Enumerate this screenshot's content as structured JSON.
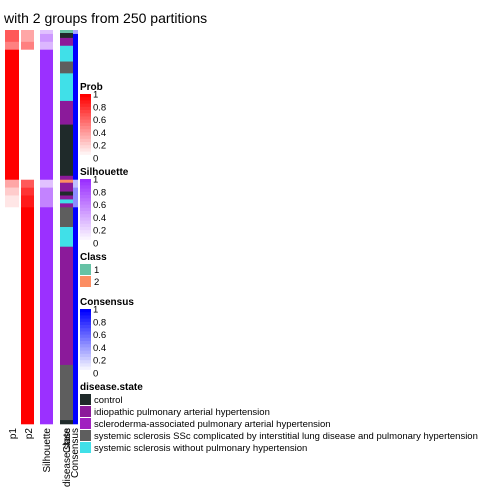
{
  "chart_data": {
    "type": "heatmap",
    "title": "with 2 groups from 250 partitions",
    "tracks": [
      {
        "label": "p1",
        "kind": "prob"
      },
      {
        "label": "p2",
        "kind": "prob"
      },
      {
        "label": "Silhouette",
        "kind": "silhouette"
      },
      {
        "label": "disease.state",
        "kind": "disease"
      },
      {
        "label": "Class",
        "kind": "class"
      },
      {
        "label": "Consensus",
        "kind": "consensus"
      }
    ],
    "rows": {
      "total": 100,
      "p1": [
        {
          "n": 3,
          "v": 0.65
        },
        {
          "n": 2,
          "v": 0.5
        },
        {
          "n": 33,
          "v": 1
        },
        {
          "n": 2,
          "v": 0.35
        },
        {
          "n": 2,
          "v": 0.2
        },
        {
          "n": 3,
          "v": 0.1
        },
        {
          "n": 55,
          "v": 0
        }
      ],
      "p2": [
        {
          "n": 3,
          "v": 0.35
        },
        {
          "n": 2,
          "v": 0.5
        },
        {
          "n": 33,
          "v": 0
        },
        {
          "n": 2,
          "v": 0.65
        },
        {
          "n": 2,
          "v": 0.8
        },
        {
          "n": 3,
          "v": 0.9
        },
        {
          "n": 55,
          "v": 1
        }
      ],
      "silhouette": [
        {
          "n": 1,
          "v": 0.3
        },
        {
          "n": 2,
          "v": 0.5
        },
        {
          "n": 2,
          "v": 0.35
        },
        {
          "n": 33,
          "v": 1
        },
        {
          "n": 2,
          "v": 0.3
        },
        {
          "n": 5,
          "v": 0.6
        },
        {
          "n": 55,
          "v": 1
        }
      ],
      "consensus": [
        {
          "n": 1,
          "v": 0.35
        },
        {
          "n": 37,
          "v": 1
        },
        {
          "n": 2,
          "v": 0.25
        },
        {
          "n": 5,
          "v": 0.45
        },
        {
          "n": 55,
          "v": 1
        }
      ],
      "class": [
        {
          "n": 38,
          "v": 1
        },
        {
          "n": 62,
          "v": 2
        }
      ],
      "disease": [
        {
          "n": 2,
          "v": "control"
        },
        {
          "n": 2,
          "v": "ipah"
        },
        {
          "n": 4,
          "v": "ssc_none"
        },
        {
          "n": 3,
          "v": "ssc_ild"
        },
        {
          "n": 7,
          "v": "ssc_none"
        },
        {
          "n": 6,
          "v": "ipah"
        },
        {
          "n": 13,
          "v": "control"
        },
        {
          "n": 4,
          "v": "ipah"
        },
        {
          "n": 1,
          "v": "control"
        },
        {
          "n": 1,
          "v": "ipah"
        },
        {
          "n": 1,
          "v": "ssc_none"
        },
        {
          "n": 1,
          "v": "ipah"
        },
        {
          "n": 5,
          "v": "ssc_ild"
        },
        {
          "n": 5,
          "v": "ssc_none"
        },
        {
          "n": 30,
          "v": "ipah"
        },
        {
          "n": 14,
          "v": "ssc_ild"
        },
        {
          "n": 1,
          "v": "control"
        }
      ]
    },
    "legends": [
      {
        "title": "Prob",
        "kind": "gradient",
        "scale": "prob",
        "ticks": [
          "1",
          "0.8",
          "0.6",
          "0.4",
          "0.2",
          "0"
        ]
      },
      {
        "title": "Silhouette",
        "kind": "gradient",
        "scale": "silhouette",
        "ticks": [
          "1",
          "0.8",
          "0.6",
          "0.4",
          "0.2",
          "0"
        ]
      },
      {
        "title": "Class",
        "kind": "discrete",
        "items": [
          {
            "label": "1",
            "color": "#66C2A5"
          },
          {
            "label": "2",
            "color": "#FC8D62"
          }
        ]
      },
      {
        "title": "Consensus",
        "kind": "gradient",
        "scale": "consensus",
        "ticks": [
          "1",
          "0.8",
          "0.6",
          "0.4",
          "0.2",
          "0"
        ]
      },
      {
        "title": "disease.state",
        "kind": "discrete",
        "items": [
          {
            "key": "control",
            "label": "control",
            "color": "#1F2A2A"
          },
          {
            "key": "ipah",
            "label": "idiopathic pulmonary arterial hypertension",
            "color": "#8B1A9A"
          },
          {
            "key": "sclero",
            "label": "scleroderma-associated pulmonary arterial hypertension",
            "color": "#A020C0"
          },
          {
            "key": "ssc_ild",
            "label": "systemic sclerosis SSc complicated by interstitial lung disease and pulmonary hypertension",
            "color": "#5E5E5E"
          },
          {
            "key": "ssc_none",
            "label": "systemic sclerosis without pulmonary hypertension",
            "color": "#40E0E8"
          }
        ]
      }
    ],
    "colors": {
      "prob_high": "#FF0000",
      "silhouette_high": "#9B30FF",
      "consensus_high": "#0000FF",
      "class_1": "#66C2A5",
      "class_2": "#FC8D62"
    }
  }
}
